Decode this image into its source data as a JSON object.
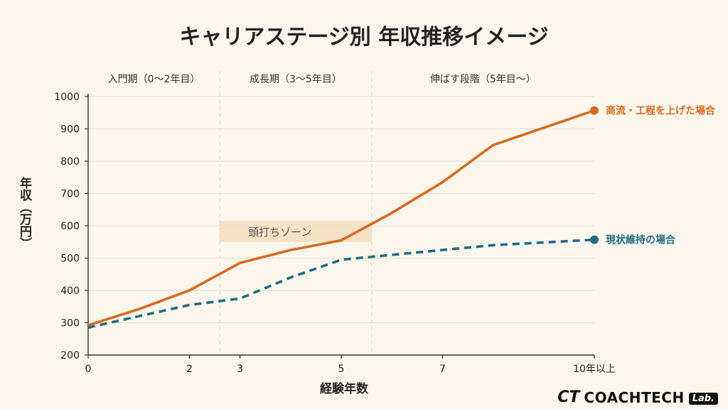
{
  "chart_data": {
    "type": "line",
    "title": "キャリアステージ別 年収推移イメージ",
    "xlabel": "経験年数",
    "ylabel": "年収（万円）",
    "ylim": [
      200,
      1000
    ],
    "yticks": [
      200,
      300,
      400,
      500,
      600,
      700,
      800,
      900,
      1000
    ],
    "xticks": [
      {
        "label": "0",
        "x": 0
      },
      {
        "label": "2",
        "x": 2
      },
      {
        "label": "3",
        "x": 3
      },
      {
        "label": "5",
        "x": 5
      },
      {
        "label": "7",
        "x": 7
      },
      {
        "label": "10年以上",
        "x": 10
      }
    ],
    "stages": [
      {
        "label": "入門期（0〜2年目）",
        "start": 0,
        "end": 2.6
      },
      {
        "label": "成長期（3〜5年目）",
        "start": 2.6,
        "end": 5.6
      },
      {
        "label": "伸ばす段階（5年目〜）",
        "start": 5.6,
        "end": 10
      }
    ],
    "zone": {
      "label": "頭打ちゾーン",
      "x0": 2.6,
      "x1": 5.6,
      "y0": 550,
      "y1": 615
    },
    "series": [
      {
        "name": "商流・工程を上げた場合",
        "style": "solid",
        "color": "#D86A1F",
        "points": [
          [
            0,
            292
          ],
          [
            1,
            342
          ],
          [
            2,
            400
          ],
          [
            3,
            485
          ],
          [
            4,
            525
          ],
          [
            5,
            555
          ],
          [
            6,
            640
          ],
          [
            7,
            735
          ],
          [
            8,
            850
          ],
          [
            10,
            957
          ]
        ]
      },
      {
        "name": "現状維持の場合",
        "style": "dashed",
        "color": "#1F6C87",
        "points": [
          [
            0,
            285
          ],
          [
            1,
            320
          ],
          [
            2,
            355
          ],
          [
            3,
            375
          ],
          [
            4,
            440
          ],
          [
            5,
            495
          ],
          [
            6,
            510
          ],
          [
            7,
            525
          ],
          [
            8,
            540
          ],
          [
            10,
            557
          ]
        ]
      }
    ]
  },
  "brand": {
    "mark": "CT",
    "name": "COACHTECH",
    "lab": "Lab."
  }
}
